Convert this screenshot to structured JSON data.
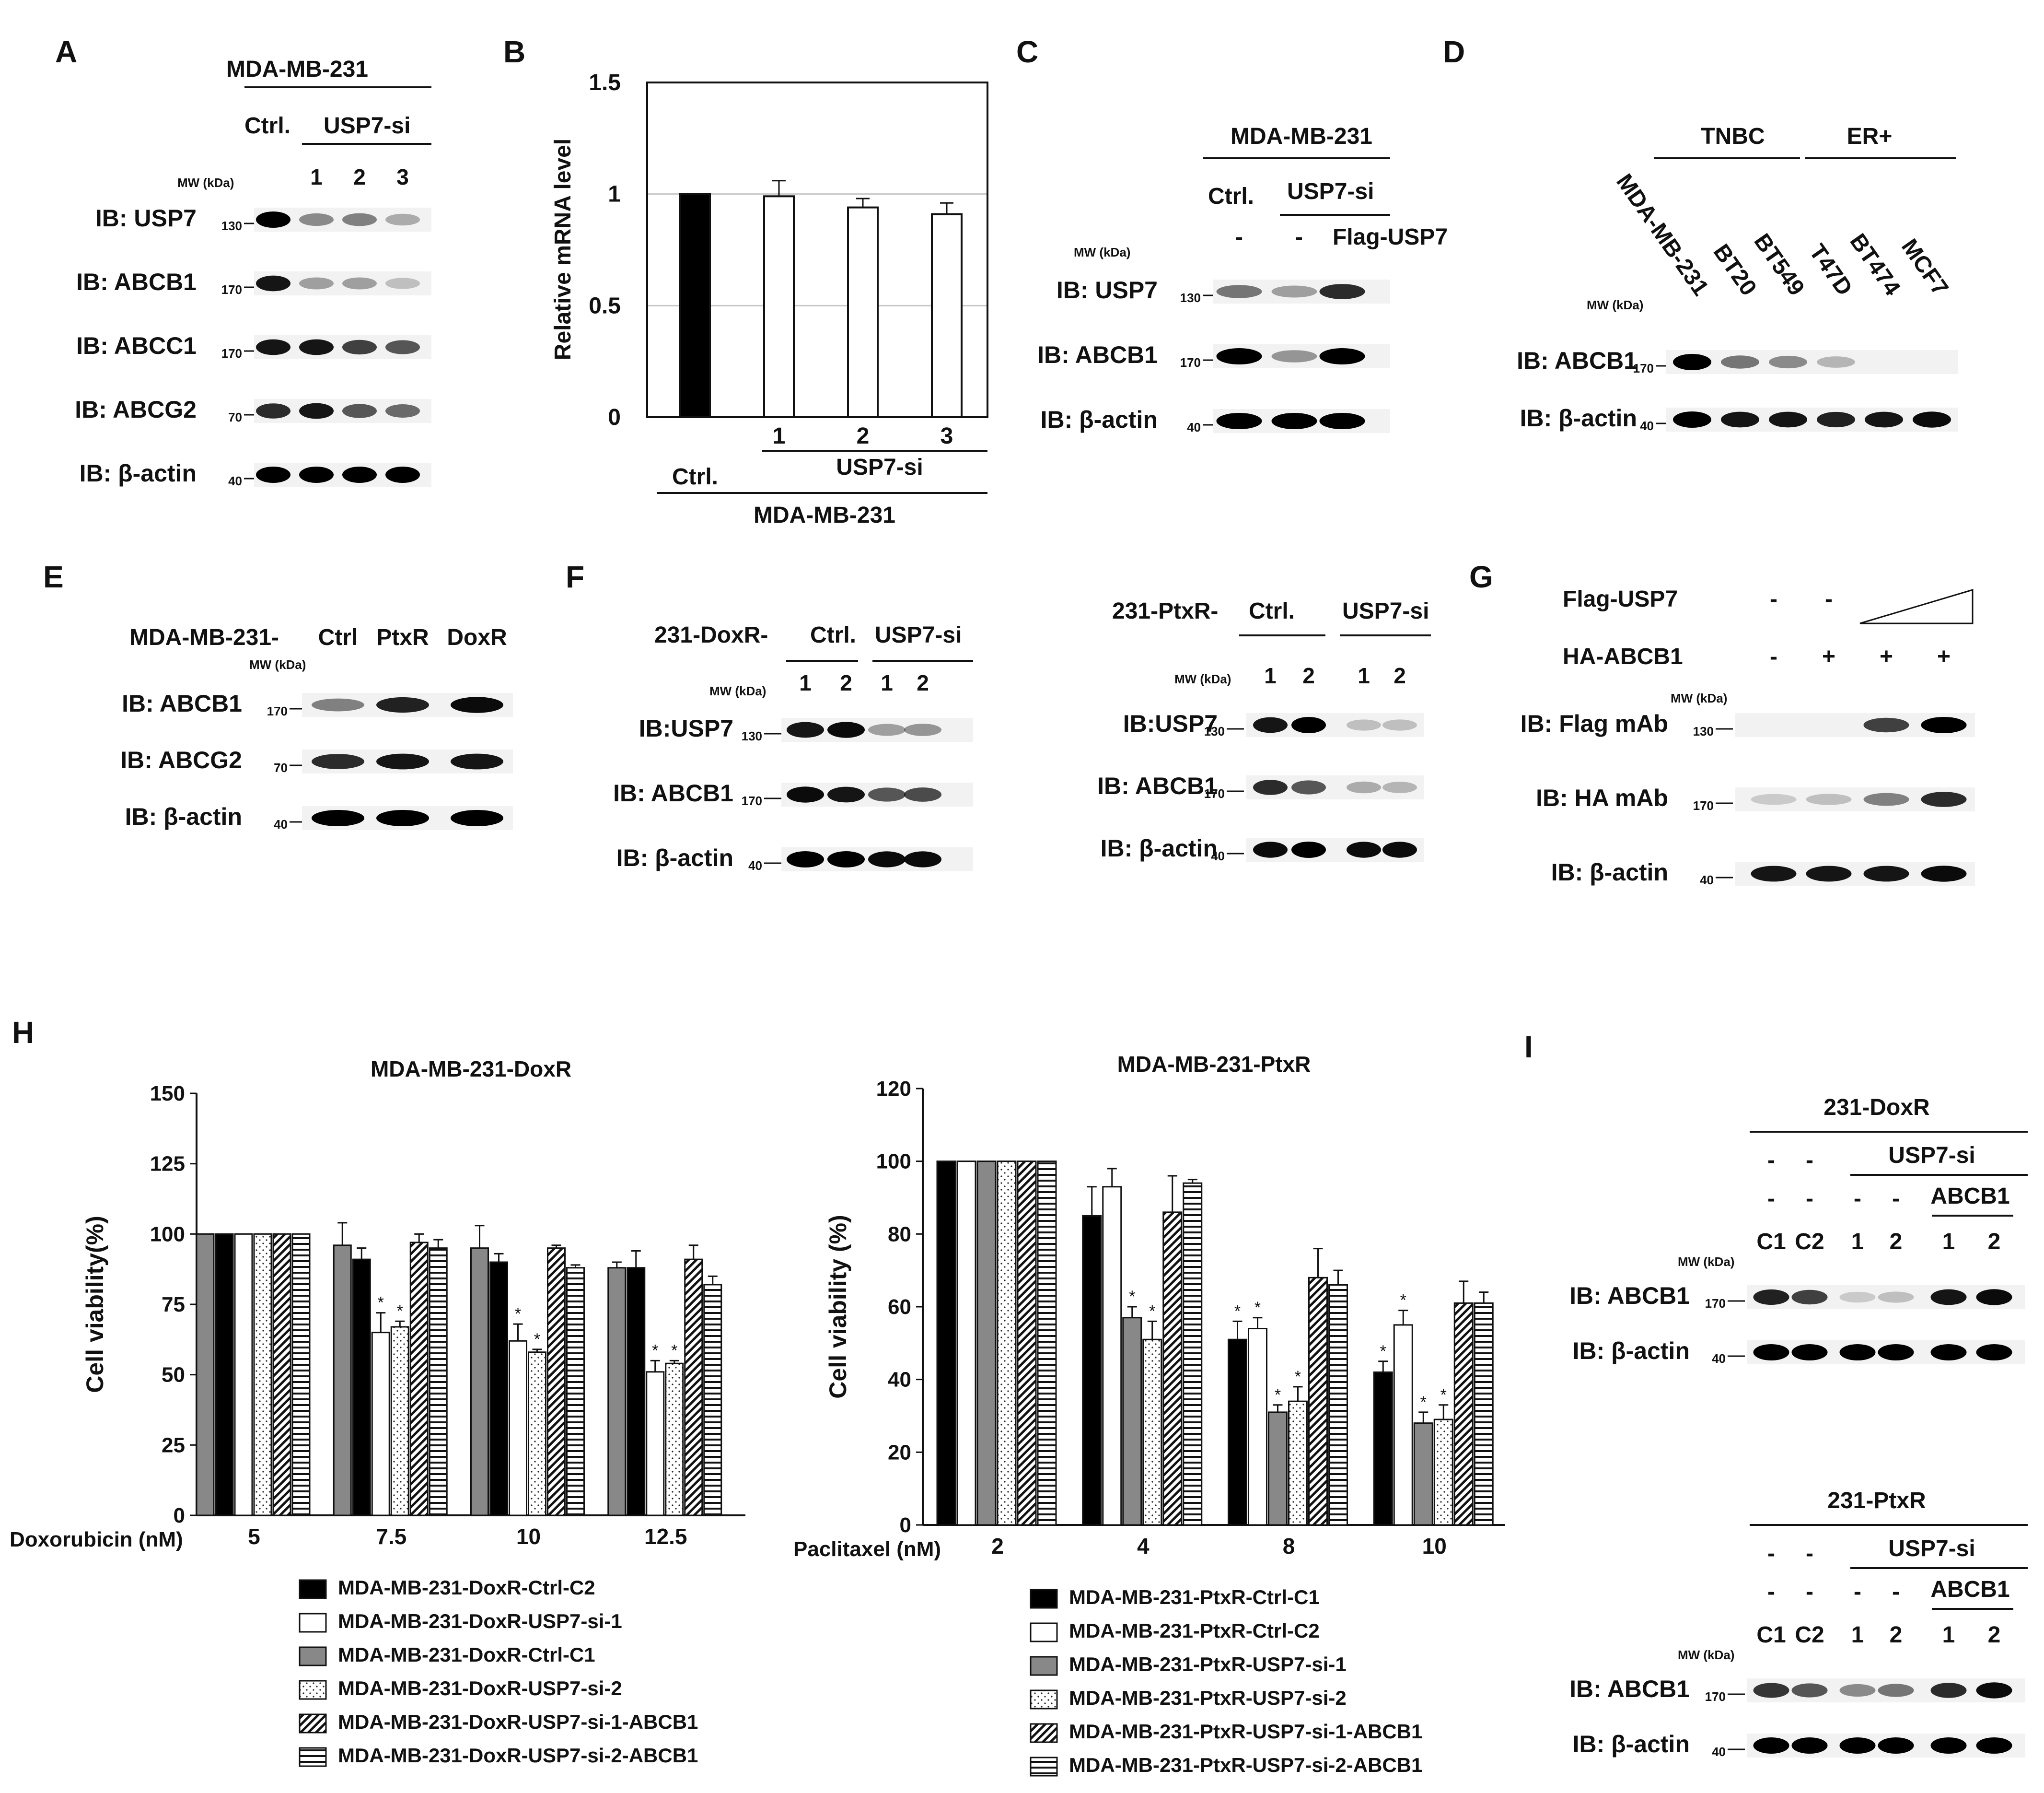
{
  "panels": {
    "A": {
      "letter": "A",
      "cell_line": "MDA-MB-231",
      "ctrl": "Ctrl.",
      "si": "USP7-si",
      "mw": "MW (kDa)",
      "lanes": [
        "1",
        "2",
        "3"
      ],
      "rows": [
        {
          "ib": "IB: USP7",
          "marker": "130",
          "bands": [
            1,
            0.35,
            0.4,
            0.2
          ]
        },
        {
          "ib": "IB: ABCB1",
          "marker": "170",
          "bands": [
            0.9,
            0.25,
            0.25,
            0.1
          ]
        },
        {
          "ib": "IB: ABCC1",
          "marker": "170",
          "bands": [
            0.9,
            0.9,
            0.7,
            0.6
          ]
        },
        {
          "ib": "IB: ABCG2",
          "marker": "70",
          "bands": [
            0.8,
            0.9,
            0.6,
            0.5
          ]
        },
        {
          "ib": "IB: β-actin",
          "marker": "40",
          "bands": [
            1,
            1,
            1,
            1
          ]
        }
      ]
    },
    "B": {
      "letter": "B",
      "cell_line": "MDA-MB-231",
      "ctrl": "Ctrl.",
      "si": "USP7-si",
      "lanes": [
        "1",
        "2",
        "3"
      ],
      "ylabel": "Relative mRNA level"
    },
    "C": {
      "letter": "C",
      "cell_line": "MDA-MB-231",
      "ctrl": "Ctrl.",
      "si": "USP7-si",
      "mw": "MW (kDa)",
      "lanes": [
        "-",
        "-",
        "Flag-USP7"
      ],
      "rows": [
        {
          "ib": "IB: USP7",
          "marker": "130",
          "bands": [
            0.45,
            0.25,
            0.8
          ]
        },
        {
          "ib": "IB: ABCB1",
          "marker": "170",
          "bands": [
            1,
            0.3,
            1
          ]
        },
        {
          "ib": "IB: β-actin",
          "marker": "40",
          "bands": [
            1,
            1,
            1
          ]
        }
      ]
    },
    "D": {
      "letter": "D",
      "group1": "TNBC",
      "group2": "ER+",
      "mw": "MW (kDa)",
      "lanes": [
        "MDA-MB-231",
        "BT20",
        "BT549",
        "T47D",
        "BT474",
        "MCF7"
      ],
      "rows": [
        {
          "ib": "IB: ABCB1",
          "marker": "170",
          "bands": [
            1,
            0.45,
            0.35,
            0.15,
            0,
            0
          ]
        },
        {
          "ib": "IB: β-actin",
          "marker": "40",
          "bands": [
            1,
            0.9,
            0.9,
            0.85,
            0.9,
            0.95
          ]
        }
      ]
    },
    "E": {
      "letter": "E",
      "prefix": "MDA-MB-231-",
      "mw": "MW (kDa)",
      "lanes": [
        "Ctrl",
        "PtxR",
        "DoxR"
      ],
      "rows": [
        {
          "ib": "IB: ABCB1",
          "marker": "170",
          "bands": [
            0.4,
            0.85,
            0.95
          ]
        },
        {
          "ib": "IB: ABCG2",
          "marker": "70",
          "bands": [
            0.8,
            0.9,
            0.9
          ]
        },
        {
          "ib": "IB: β-actin",
          "marker": "40",
          "bands": [
            1,
            1,
            1
          ]
        }
      ]
    },
    "F": {
      "letter": "F",
      "dox_prefix": "231-DoxR-",
      "ptx_prefix": "231-PtxR-",
      "ctrl": "Ctrl.",
      "si": "USP7-si",
      "mw": "MW (kDa)",
      "lanes": [
        "1",
        "2",
        "1",
        "2"
      ],
      "dox_rows": [
        {
          "ib": "IB:USP7",
          "marker": "130",
          "bands": [
            0.9,
            0.95,
            0.25,
            0.3
          ]
        },
        {
          "ib": "IB: ABCB1",
          "marker": "170",
          "bands": [
            0.95,
            0.9,
            0.6,
            0.65
          ]
        },
        {
          "ib": "IB: β-actin",
          "marker": "40",
          "bands": [
            1,
            1,
            0.95,
            0.95
          ]
        }
      ],
      "ptx_rows": [
        {
          "ib": "IB:USP7",
          "marker": "130",
          "bands": [
            0.9,
            1,
            0.1,
            0.1
          ]
        },
        {
          "ib": "IB: ABCB1",
          "marker": "170",
          "bands": [
            0.8,
            0.6,
            0.2,
            0.15
          ]
        },
        {
          "ib": "IB: β-actin",
          "marker": "40",
          "bands": [
            0.95,
            1,
            0.95,
            0.95
          ]
        }
      ]
    },
    "G": {
      "letter": "G",
      "flag_label": "Flag-USP7",
      "ha_label": "HA-ABCB1",
      "flag_signs": [
        "-",
        "-"
      ],
      "ha_signs": [
        "-",
        "+",
        "+",
        "+"
      ],
      "mw": "MW (kDa)",
      "rows": [
        {
          "ib": "IB: Flag mAb",
          "marker": "130",
          "bands": [
            0,
            0,
            0.7,
            1
          ]
        },
        {
          "ib": "IB: HA mAb",
          "marker": "170",
          "bands": [
            0.05,
            0.1,
            0.4,
            0.8
          ]
        },
        {
          "ib": "IB: β-actin",
          "marker": "40",
          "bands": [
            0.9,
            0.9,
            0.9,
            0.95
          ]
        }
      ]
    },
    "H": {
      "letter": "H"
    },
    "I": {
      "letter": "I",
      "mw": "MW (kDa)",
      "si": "USP7-si",
      "abcb1": "ABCB1",
      "lanes": [
        "C1",
        "C2",
        "1",
        "2",
        "1",
        "2"
      ],
      "signs_row1": [
        "-",
        "-"
      ],
      "signs_row2": [
        "-",
        "-",
        "-",
        "-"
      ],
      "dox_title": "231-DoxR",
      "ptx_title": "231-PtxR",
      "dox_rows": [
        {
          "ib": "IB: ABCB1",
          "marker": "170",
          "bands": [
            0.85,
            0.7,
            0.05,
            0.1,
            0.9,
            0.95
          ]
        },
        {
          "ib": "IB: β-actin",
          "marker": "40",
          "bands": [
            1,
            1,
            1,
            1,
            1,
            1
          ]
        }
      ],
      "ptx_rows": [
        {
          "ib": "IB: ABCB1",
          "marker": "170",
          "bands": [
            0.75,
            0.6,
            0.35,
            0.45,
            0.8,
            0.95
          ]
        },
        {
          "ib": "IB: β-actin",
          "marker": "40",
          "bands": [
            1,
            1,
            1,
            1,
            1,
            1
          ]
        }
      ]
    }
  },
  "chart_data": [
    {
      "id": "B",
      "type": "bar",
      "categories": [
        "Ctrl.",
        "1",
        "2",
        "3"
      ],
      "values": [
        1.0,
        0.99,
        0.94,
        0.91
      ],
      "errors": [
        0.0,
        0.07,
        0.04,
        0.05
      ],
      "fills": [
        "#000000",
        "#ffffff",
        "#ffffff",
        "#ffffff"
      ],
      "ylabel": "Relative mRNA level",
      "ylim": [
        0,
        1.5
      ],
      "yticks": [
        0,
        0.5,
        1,
        1.5
      ],
      "ytick_labels": [
        "0",
        "0.5",
        "1",
        "1.5"
      ],
      "grid": true
    },
    {
      "id": "H-DoxR",
      "type": "bar",
      "title": "MDA-MB-231-DoxR",
      "ylabel": "Cell viability(%)",
      "xlabel": "Doxorubicin (nM)",
      "categories": [
        "5",
        "7.5",
        "10",
        "12.5"
      ],
      "ylim": [
        0,
        150
      ],
      "yticks": [
        0,
        25,
        50,
        75,
        100,
        125,
        150
      ],
      "series": [
        {
          "name": "MDA-MB-231-DoxR-Ctrl-C1",
          "pattern": "gray",
          "values": [
            100,
            96,
            95,
            88
          ],
          "errors": [
            0,
            8,
            8,
            2
          ],
          "sig": [
            false,
            false,
            false,
            false
          ]
        },
        {
          "name": "MDA-MB-231-DoxR-Ctrl-C2",
          "pattern": "black",
          "values": [
            100,
            91,
            90,
            88
          ],
          "errors": [
            0,
            4,
            3,
            6
          ],
          "sig": [
            false,
            false,
            false,
            false
          ]
        },
        {
          "name": "MDA-MB-231-DoxR-USP7-si-1",
          "pattern": "white",
          "values": [
            100,
            65,
            62,
            51
          ],
          "errors": [
            0,
            7,
            6,
            4
          ],
          "sig": [
            false,
            true,
            true,
            true
          ]
        },
        {
          "name": "MDA-MB-231-DoxR-USP7-si-2",
          "pattern": "dots",
          "values": [
            100,
            67,
            58,
            54
          ],
          "errors": [
            0,
            2,
            1,
            1
          ],
          "sig": [
            false,
            true,
            true,
            true
          ]
        },
        {
          "name": "MDA-MB-231-DoxR-USP7-si-1-ABCB1",
          "pattern": "diag",
          "values": [
            100,
            97,
            95,
            91
          ],
          "errors": [
            0,
            3,
            1,
            5
          ],
          "sig": [
            false,
            false,
            false,
            false
          ]
        },
        {
          "name": "MDA-MB-231-DoxR-USP7-si-2-ABCB1",
          "pattern": "horiz",
          "values": [
            100,
            95,
            88,
            82
          ],
          "errors": [
            0,
            3,
            1,
            3
          ],
          "sig": [
            false,
            false,
            false,
            false
          ]
        }
      ],
      "legend_order": [
        1,
        2,
        0,
        3,
        4,
        5
      ],
      "legend_fills": [
        "black",
        "white",
        "gray",
        "dots",
        "diag",
        "horiz"
      ]
    },
    {
      "id": "H-PtxR",
      "type": "bar",
      "title": "MDA-MB-231-PtxR",
      "ylabel": "Cell viability (%)",
      "xlabel": "Paclitaxel (nM)",
      "categories": [
        "2",
        "4",
        "8",
        "10"
      ],
      "ylim": [
        0,
        120
      ],
      "yticks": [
        0,
        20,
        40,
        60,
        80,
        100,
        120
      ],
      "series": [
        {
          "name": "MDA-MB-231-PtxR-Ctrl-C1",
          "pattern": "black",
          "values": [
            100,
            85,
            51,
            42
          ],
          "errors": [
            0,
            8,
            5,
            3
          ],
          "sig": [
            false,
            false,
            true,
            true
          ]
        },
        {
          "name": "MDA-MB-231-PtxR-Ctrl-C2",
          "pattern": "white",
          "values": [
            100,
            93,
            54,
            55
          ],
          "errors": [
            0,
            5,
            3,
            4
          ],
          "sig": [
            false,
            false,
            true,
            true
          ]
        },
        {
          "name": "MDA-MB-231-PtxR-USP7-si-1",
          "pattern": "gray",
          "values": [
            100,
            57,
            31,
            28
          ],
          "errors": [
            0,
            3,
            2,
            3
          ],
          "sig": [
            false,
            true,
            true,
            true
          ]
        },
        {
          "name": "MDA-MB-231-PtxR-USP7-si-2",
          "pattern": "dots",
          "values": [
            100,
            51,
            34,
            29
          ],
          "errors": [
            0,
            5,
            4,
            4
          ],
          "sig": [
            false,
            true,
            true,
            true
          ]
        },
        {
          "name": "MDA-MB-231-PtxR-USP7-si-1-ABCB1",
          "pattern": "diag",
          "values": [
            100,
            86,
            68,
            61
          ],
          "errors": [
            0,
            10,
            8,
            6
          ],
          "sig": [
            false,
            false,
            false,
            false
          ]
        },
        {
          "name": "MDA-MB-231-PtxR-USP7-si-2-ABCB1",
          "pattern": "horiz",
          "values": [
            100,
            94,
            66,
            61
          ],
          "errors": [
            0,
            1,
            4,
            3
          ],
          "sig": [
            false,
            false,
            false,
            false
          ]
        }
      ]
    }
  ]
}
